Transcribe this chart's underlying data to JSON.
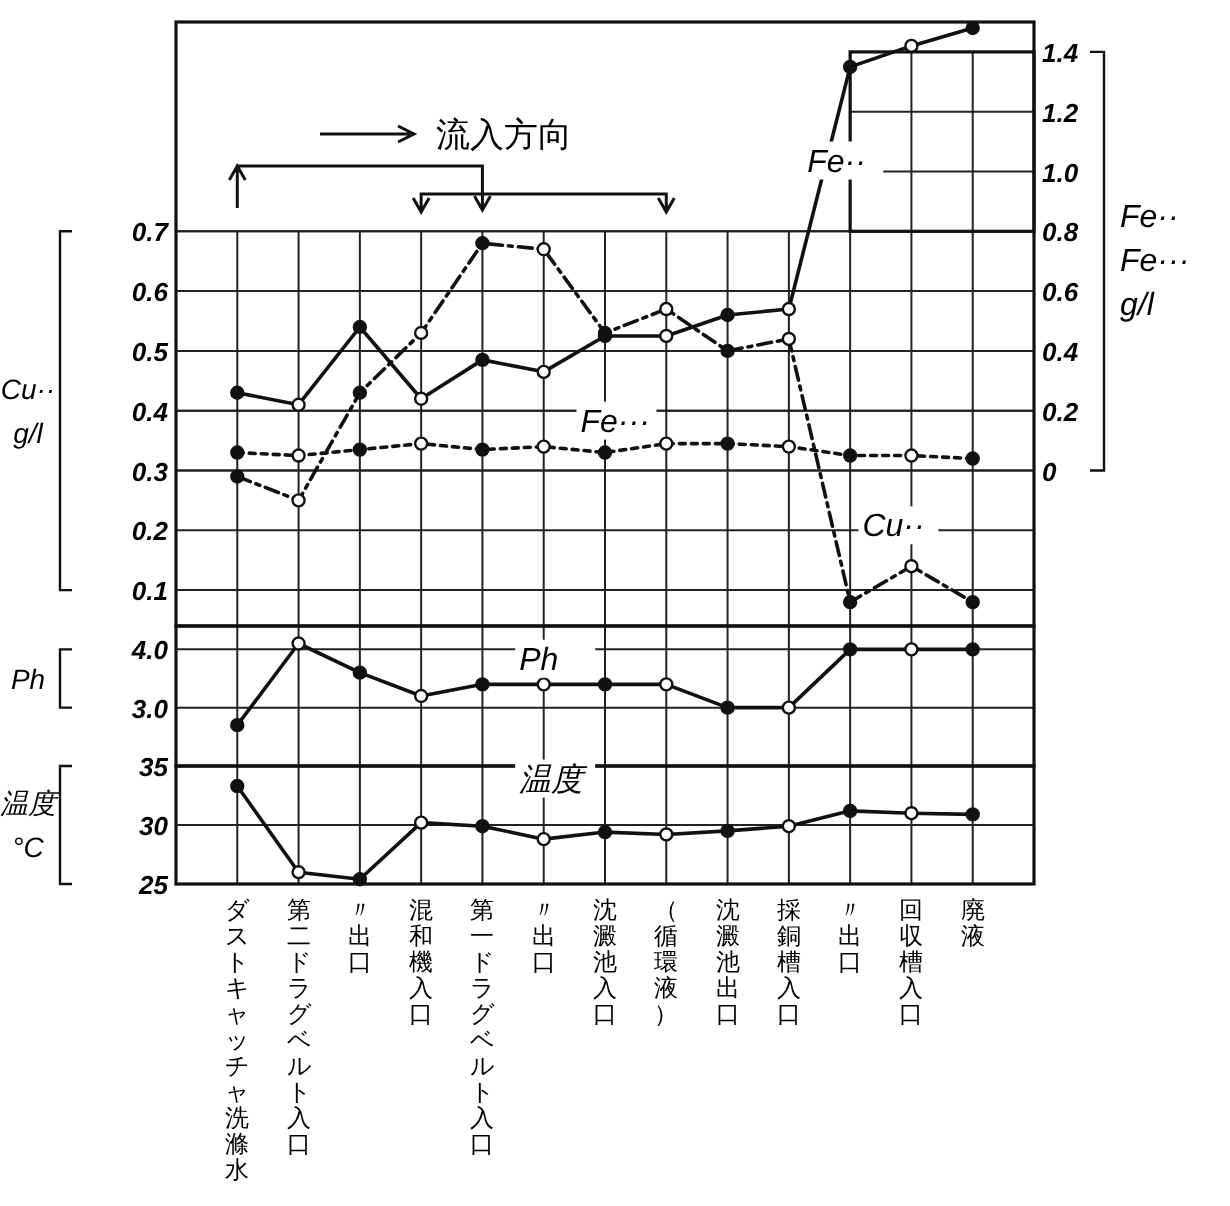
{
  "chart_data": [
    {
      "type": "line",
      "categories": [
        null,
        null,
        null,
        null,
        null,
        null,
        null,
        null,
        null,
        null,
        null,
        null,
        null
      ],
      "ylabel": "Cu·· g/l",
      "y2label": "Fe·· Fe··· g/l",
      "ylim": [
        0.04,
        1.05
      ],
      "yticks": [
        {
          "value": 0.1,
          "label": "0.1"
        },
        {
          "value": 0.2,
          "label": "0.2"
        },
        {
          "value": 0.3,
          "label": "0.3"
        },
        {
          "value": 0.4,
          "label": "0.4"
        },
        {
          "value": 0.5,
          "label": "0.5"
        },
        {
          "value": 0.6,
          "label": "0.6"
        },
        {
          "value": 0.7,
          "label": "0.7"
        }
      ],
      "y2lim": [
        -0.52,
        1.5
      ],
      "y2ticks": [
        0,
        {
          "value": 0.2,
          "label": "0.2"
        },
        {
          "value": 0.4,
          "label": "0.4"
        },
        {
          "value": 0.6,
          "label": "0.6"
        },
        {
          "value": 0.8,
          "label": "0.8"
        },
        {
          "value": 1.0,
          "label": "1.0"
        },
        {
          "value": 1.2,
          "label": "1.2"
        },
        {
          "value": 1.4,
          "label": "1.4"
        }
      ],
      "grid": true,
      "legend": false,
      "tick_labels": "y",
      "marker": "circle",
      "annotations": [
        "流入方向"
      ],
      "series": [
        {
          "name": "Fe··",
          "color": "#111111",
          "axis": "y2",
          "line_style": "solid",
          "values": [
            0.26,
            0.22,
            0.48,
            0.24,
            0.37,
            0.33,
            0.45,
            0.45,
            0.52,
            0.54,
            1.35,
            1.42,
            1.48
          ]
        },
        {
          "name": "Fe···",
          "color": "#111111",
          "axis": "y2",
          "line_style": "dotted",
          "values": [
            0.06,
            0.05,
            0.07,
            0.09,
            0.07,
            0.08,
            0.06,
            0.09,
            0.09,
            0.08,
            0.05,
            0.05,
            0.04
          ]
        },
        {
          "name": "Cu··",
          "color": "#111111",
          "line_style": "dashed",
          "values": [
            0.29,
            0.25,
            0.43,
            0.53,
            0.68,
            0.67,
            0.53,
            0.57,
            0.5,
            0.52,
            0.08,
            0.14,
            0.08
          ]
        }
      ]
    },
    {
      "type": "line",
      "categories": [
        null,
        null,
        null,
        null,
        null,
        null,
        null,
        null,
        null,
        null,
        null,
        null,
        null
      ],
      "ylabel": "Ph",
      "ylim": [
        2,
        4.4
      ],
      "yticks": [
        {
          "value": 3,
          "label": "3.0"
        },
        {
          "value": 4,
          "label": "4.0"
        }
      ],
      "grid": true,
      "legend": false,
      "tick_labels": "y",
      "marker": "circle",
      "series": [
        {
          "name": "Ph",
          "color": "#111111",
          "line_style": "solid",
          "values": [
            2.7,
            4.1,
            3.6,
            3.2,
            3.4,
            3.4,
            3.4,
            3.4,
            3.0,
            3.0,
            4.0,
            4.0,
            4.0
          ]
        }
      ]
    },
    {
      "type": "line",
      "categories": [
        "ダストキャッチャ洗滌水",
        "第二ドラグベルト入口",
        "〃出口",
        "混和機入口",
        "第一ドラグベルト入口",
        "〃出口",
        "沈澱池入口",
        "（循環液）",
        "沈澱池出口",
        "採銅槽入口",
        "〃出口",
        "回収槽入口",
        "廃液"
      ],
      "ylabel": "温度 °C",
      "ylim": [
        25,
        35
      ],
      "yticks": [
        25,
        30,
        35
      ],
      "grid": true,
      "legend": false,
      "marker": "circle",
      "series": [
        {
          "name": "温度",
          "color": "#111111",
          "line_style": "solid",
          "values": [
            33.3,
            26.0,
            25.4,
            30.2,
            29.9,
            28.8,
            29.4,
            29.2,
            29.5,
            29.9,
            31.2,
            31.0,
            30.9
          ]
        }
      ]
    }
  ]
}
